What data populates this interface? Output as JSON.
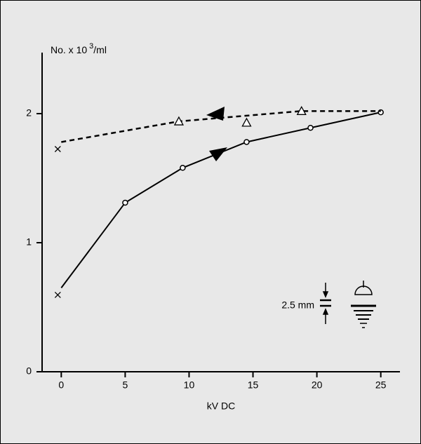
{
  "chart_data": {
    "type": "line",
    "y_label": [
      "No. x 10",
      "3",
      "/ml"
    ],
    "x_label": "kV DC",
    "annotation": "2.5 mm",
    "xlim": [
      -1.5,
      26.5
    ],
    "ylim": [
      0,
      2.5
    ],
    "xticks": [
      0,
      5,
      10,
      15,
      20,
      25
    ],
    "yticks": [
      0,
      1,
      2
    ],
    "series": [
      {
        "style": "solid",
        "color": "#000000",
        "x": [
          0,
          5,
          9.5,
          14.5,
          19.5,
          25
        ],
        "values": [
          0.65,
          1.31,
          1.58,
          1.78,
          1.89,
          2.01
        ],
        "markers": [
          "x",
          "circle",
          "circle",
          "circle",
          "circle",
          "circle"
        ]
      },
      {
        "style": "dashed",
        "color": "#000000",
        "x": [
          0,
          9.2,
          18.8,
          25
        ],
        "values": [
          1.78,
          1.94,
          2.02,
          2.02
        ],
        "markers": [
          "x",
          "triangle",
          "triangle",
          "none"
        ]
      },
      {
        "style": "none",
        "color": "#000000",
        "x": [
          14.5
        ],
        "values": [
          1.93
        ],
        "markers": [
          "triangle"
        ]
      }
    ]
  }
}
